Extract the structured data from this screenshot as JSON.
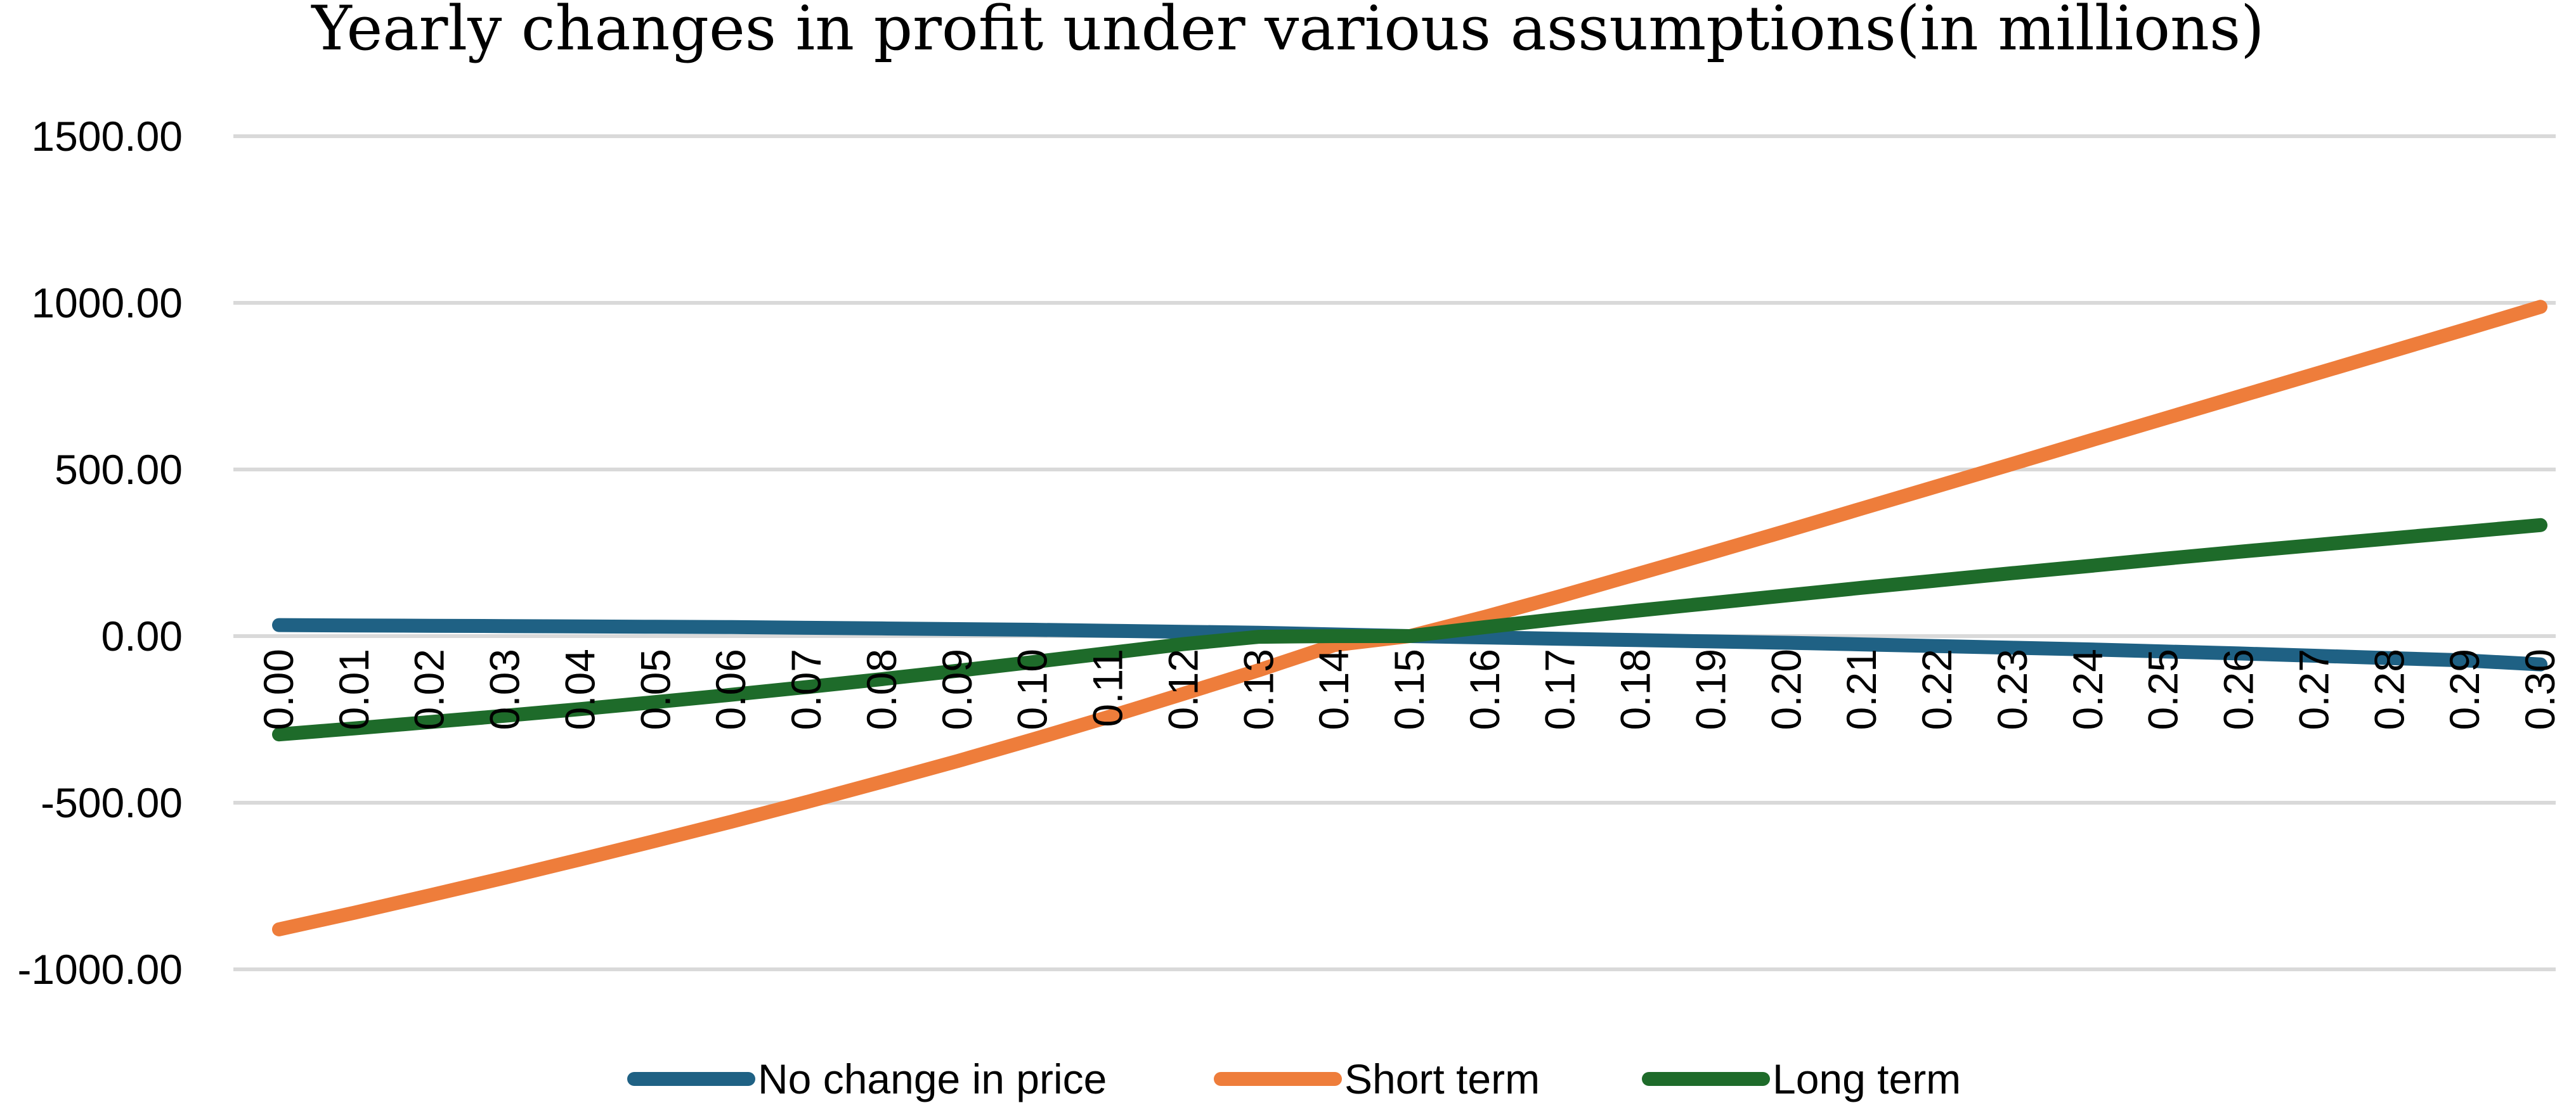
{
  "chart_data": {
    "type": "line",
    "title": "Yearly changes in profit under various assumptions(in millions)",
    "xlabel": "",
    "ylabel": "",
    "ylim": [
      -1000,
      1500
    ],
    "yticks": [
      "-1000.00",
      "-500.00",
      "0.00",
      "500.00",
      "1000.00",
      "1500.00"
    ],
    "grid": true,
    "legend_position": "bottom",
    "categories": [
      "0.00",
      "0.01",
      "0.02",
      "0.03",
      "0.04",
      "0.05",
      "0.06",
      "0.07",
      "0.08",
      "0.09",
      "0.10",
      "0.11",
      "0.12",
      "0.13",
      "0.14",
      "0.15",
      "0.16",
      "0.17",
      "0.18",
      "0.19",
      "0.20",
      "0.21",
      "0.22",
      "0.23",
      "0.24",
      "0.25",
      "0.26",
      "0.27",
      "0.28",
      "0.29",
      "0.30"
    ],
    "series": [
      {
        "name": "No change in price",
        "color": "#1f6184",
        "values": [
          33,
          32,
          31,
          30,
          29,
          28,
          27,
          25,
          23,
          21,
          19,
          16,
          13,
          10,
          5,
          0,
          -4,
          -8,
          -12,
          -16,
          -20,
          -25,
          -30,
          -35,
          -40,
          -46,
          -52,
          -59,
          -66,
          -73,
          -85
        ]
      },
      {
        "name": "Short term",
        "color": "#ee7d3b",
        "values": [
          -880,
          -830,
          -778,
          -725,
          -670,
          -614,
          -557,
          -498,
          -437,
          -375,
          -310,
          -243,
          -173,
          -102,
          -27,
          0,
          58,
          120,
          185,
          250,
          316,
          383,
          450,
          517,
          585,
          652,
          719,
          786,
          853,
          920,
          988
        ]
      },
      {
        "name": "Long term",
        "color": "#1e6b2a",
        "values": [
          -295,
          -277,
          -258,
          -239,
          -219,
          -198,
          -176,
          -153,
          -129,
          -104,
          -78,
          -51,
          -24,
          -2,
          0,
          0,
          27,
          52,
          76,
          99,
          122,
          145,
          167,
          189,
          210,
          232,
          253,
          273,
          293,
          313,
          333
        ]
      }
    ]
  }
}
